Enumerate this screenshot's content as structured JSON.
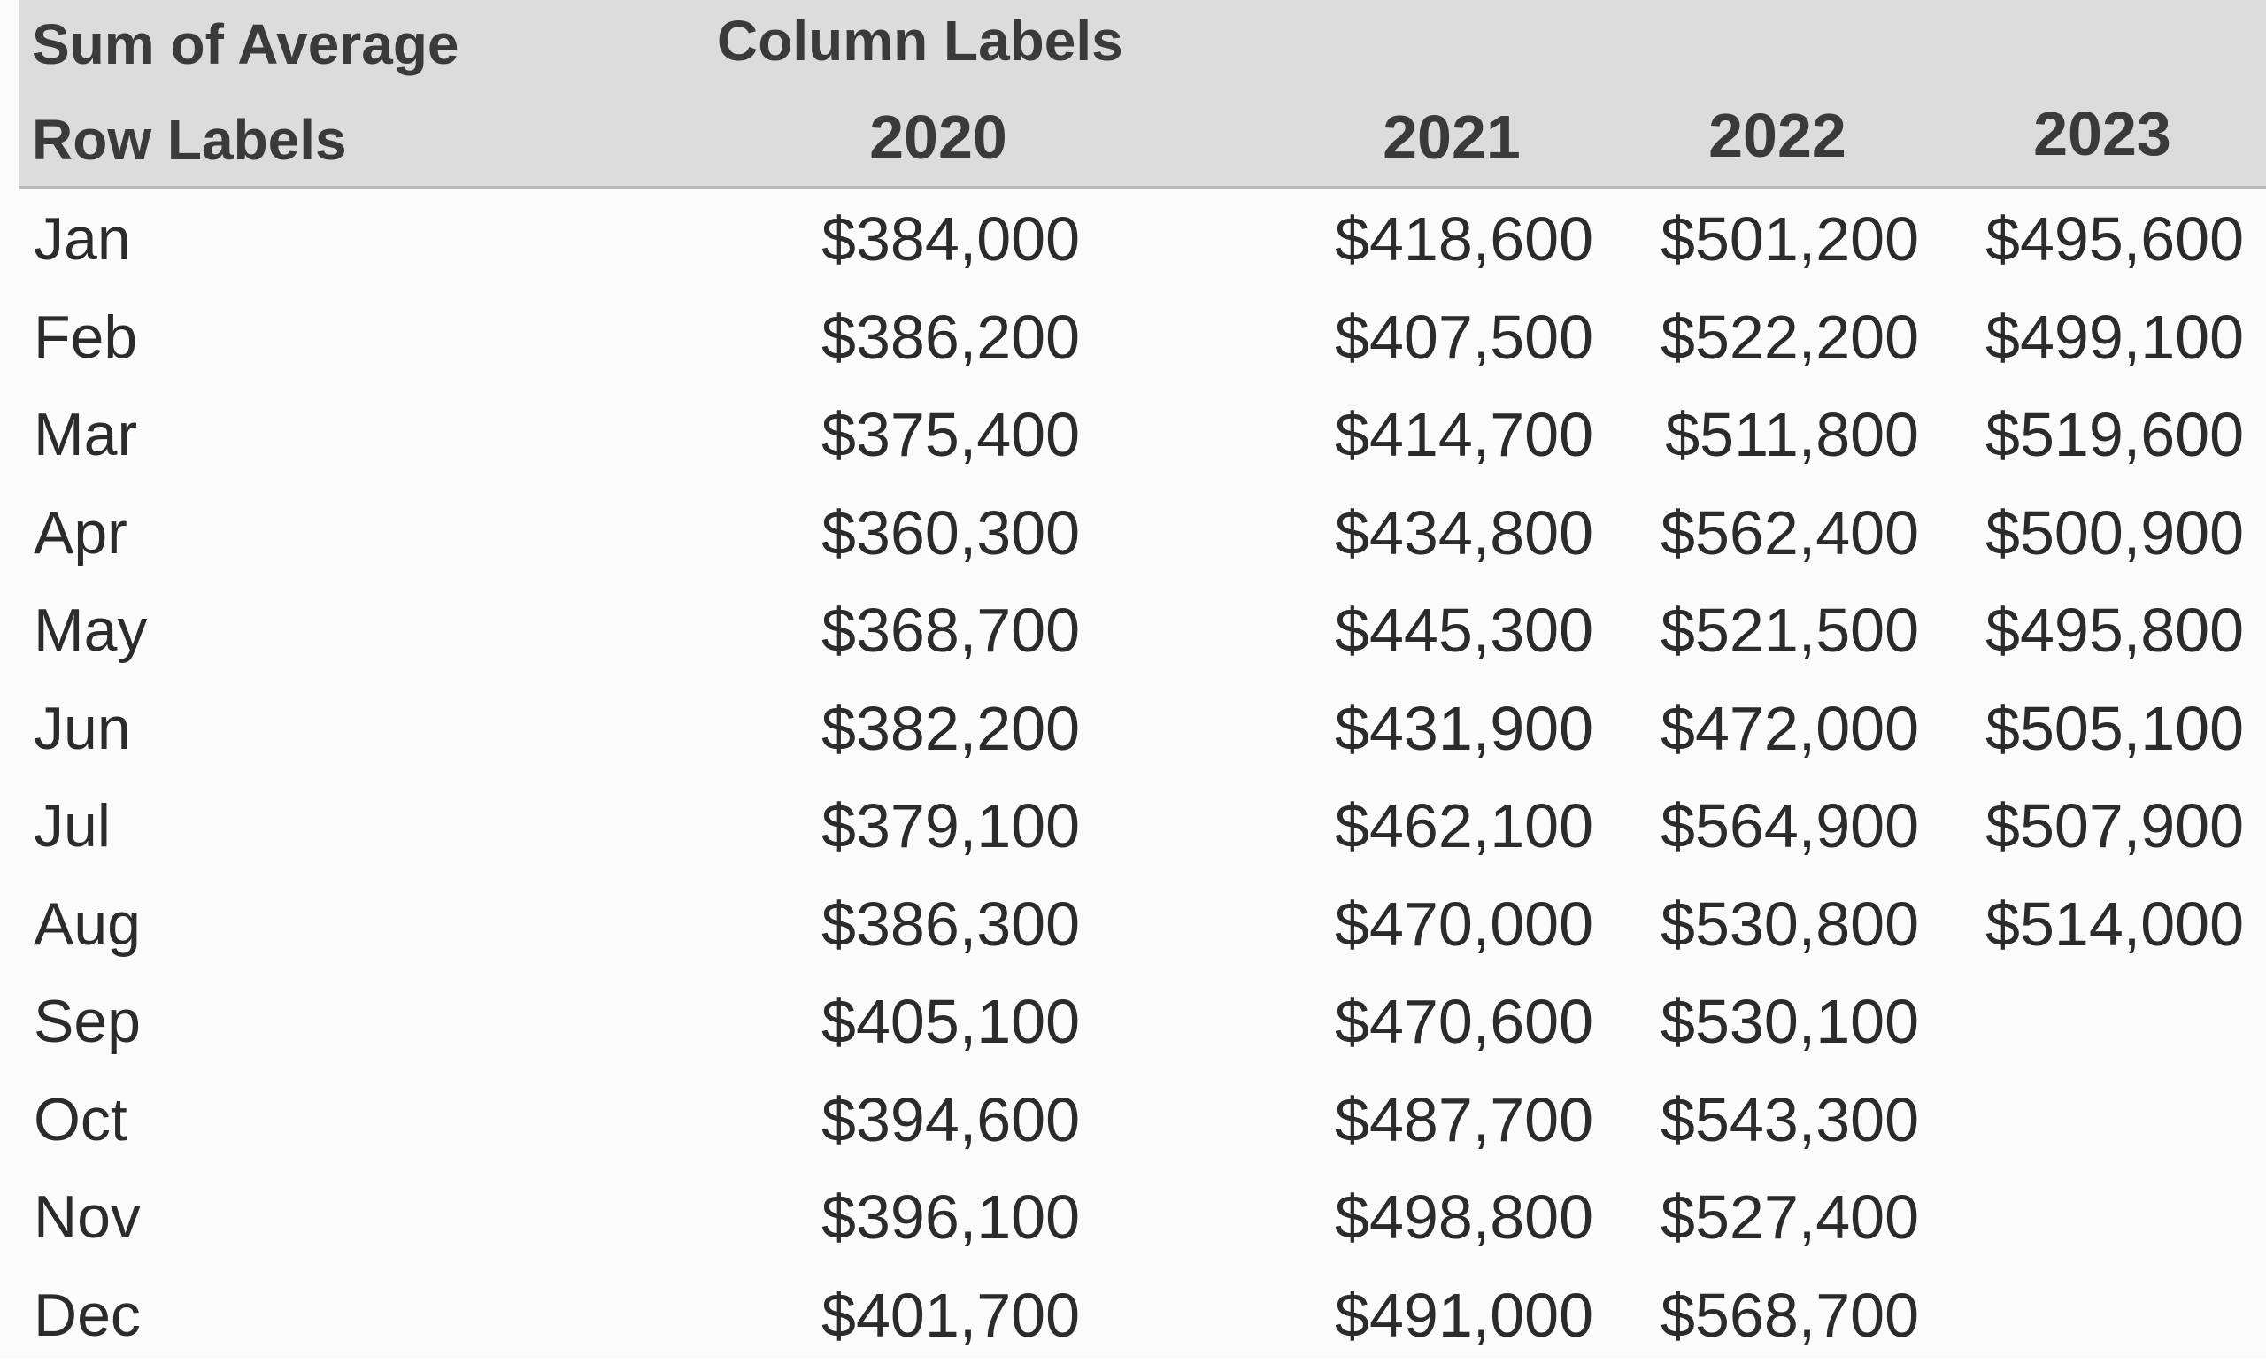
{
  "pivot": {
    "value_field_label": "Sum of Average",
    "column_labels_caption": "Column Labels",
    "row_labels_caption": "Row Labels",
    "years": [
      "2020",
      "2021",
      "2022",
      "2023"
    ],
    "rows": [
      {
        "month": "Jan",
        "values": [
          "$384,000",
          "$418,600",
          "$501,200",
          "$495,600"
        ]
      },
      {
        "month": "Feb",
        "values": [
          "$386,200",
          "$407,500",
          "$522,200",
          "$499,100"
        ]
      },
      {
        "month": "Mar",
        "values": [
          "$375,400",
          "$414,700",
          "$511,800",
          "$519,600"
        ]
      },
      {
        "month": "Apr",
        "values": [
          "$360,300",
          "$434,800",
          "$562,400",
          "$500,900"
        ]
      },
      {
        "month": "May",
        "values": [
          "$368,700",
          "$445,300",
          "$521,500",
          "$495,800"
        ]
      },
      {
        "month": "Jun",
        "values": [
          "$382,200",
          "$431,900",
          "$472,000",
          "$505,100"
        ]
      },
      {
        "month": "Jul",
        "values": [
          "$379,100",
          "$462,100",
          "$564,900",
          "$507,900"
        ]
      },
      {
        "month": "Aug",
        "values": [
          "$386,300",
          "$470,000",
          "$530,800",
          "$514,000"
        ]
      },
      {
        "month": "Sep",
        "values": [
          "$405,100",
          "$470,600",
          "$530,100",
          ""
        ]
      },
      {
        "month": "Oct",
        "values": [
          "$394,600",
          "$487,700",
          "$543,300",
          ""
        ]
      },
      {
        "month": "Nov",
        "values": [
          "$396,100",
          "$498,800",
          "$527,400",
          ""
        ]
      },
      {
        "month": "Dec",
        "values": [
          "$401,700",
          "$491,000",
          "$568,700",
          ""
        ]
      }
    ]
  },
  "colors": {
    "header_background": "#dcdcdc",
    "text": "#2b2b2b"
  }
}
